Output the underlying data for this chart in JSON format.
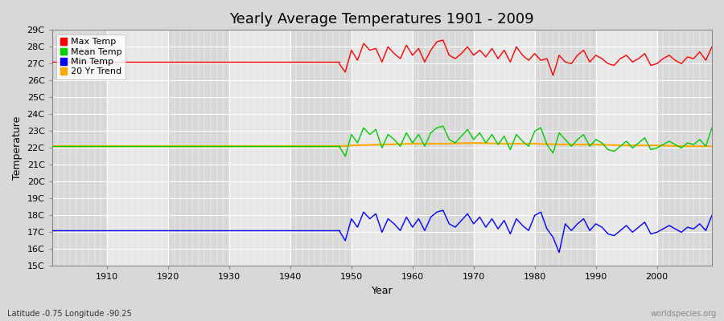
{
  "title": "Yearly Average Temperatures 1901 - 2009",
  "xlabel": "Year",
  "ylabel": "Temperature",
  "bottom_left_label": "Latitude -0.75 Longitude -90.25",
  "bottom_right_label": "worldspecies.org",
  "legend_entries": [
    "Max Temp",
    "Mean Temp",
    "Min Temp",
    "20 Yr Trend"
  ],
  "legend_colors": [
    "#ff0000",
    "#00cc00",
    "#0000ff",
    "#ffaa00"
  ],
  "ylim": [
    15,
    29
  ],
  "yticks": [
    15,
    16,
    17,
    18,
    19,
    20,
    21,
    22,
    23,
    24,
    25,
    26,
    27,
    28,
    29
  ],
  "ytick_labels": [
    "15C",
    "16C",
    "17C",
    "18C",
    "19C",
    "20C",
    "21C",
    "22C",
    "23C",
    "24C",
    "25C",
    "26C",
    "27C",
    "28C",
    "29C"
  ],
  "xlim": [
    1901,
    2009
  ],
  "xticks": [
    1910,
    1920,
    1930,
    1940,
    1950,
    1960,
    1970,
    1980,
    1990,
    2000
  ],
  "bg_color": "#d8d8d8",
  "plot_bg_color_light": "#e8e8e8",
  "plot_bg_color_dark": "#d8d8d8",
  "grid_color": "#ffffff",
  "max_flat_value": 27.1,
  "mean_flat_value": 22.1,
  "min_flat_value": 17.1,
  "trend_flat_value": 22.1,
  "flat_start": 1901,
  "flat_end": 1948,
  "max_data": {
    "years": [
      1948,
      1949,
      1950,
      1951,
      1952,
      1953,
      1954,
      1955,
      1956,
      1957,
      1958,
      1959,
      1960,
      1961,
      1962,
      1963,
      1964,
      1965,
      1966,
      1967,
      1968,
      1969,
      1970,
      1971,
      1972,
      1973,
      1974,
      1975,
      1976,
      1977,
      1978,
      1979,
      1980,
      1981,
      1982,
      1983,
      1984,
      1985,
      1986,
      1987,
      1988,
      1989,
      1990,
      1991,
      1992,
      1993,
      1994,
      1995,
      1996,
      1997,
      1998,
      1999,
      2000,
      2001,
      2002,
      2003,
      2004,
      2005,
      2006,
      2007,
      2008,
      2009
    ],
    "values": [
      27.0,
      26.5,
      27.8,
      27.2,
      28.2,
      27.8,
      27.9,
      27.1,
      28.0,
      27.6,
      27.3,
      28.1,
      27.5,
      27.9,
      27.1,
      27.8,
      28.3,
      28.4,
      27.5,
      27.3,
      27.6,
      28.0,
      27.5,
      27.8,
      27.4,
      27.9,
      27.3,
      27.8,
      27.1,
      28.0,
      27.5,
      27.2,
      27.6,
      27.2,
      27.3,
      26.3,
      27.5,
      27.1,
      27.0,
      27.5,
      27.8,
      27.1,
      27.5,
      27.3,
      27.0,
      26.9,
      27.3,
      27.5,
      27.1,
      27.3,
      27.6,
      26.9,
      27.0,
      27.3,
      27.5,
      27.2,
      27.0,
      27.4,
      27.3,
      27.7,
      27.2,
      28.0
    ]
  },
  "mean_data": {
    "years": [
      1948,
      1949,
      1950,
      1951,
      1952,
      1953,
      1954,
      1955,
      1956,
      1957,
      1958,
      1959,
      1960,
      1961,
      1962,
      1963,
      1964,
      1965,
      1966,
      1967,
      1968,
      1969,
      1970,
      1971,
      1972,
      1973,
      1974,
      1975,
      1976,
      1977,
      1978,
      1979,
      1980,
      1981,
      1982,
      1983,
      1984,
      1985,
      1986,
      1987,
      1988,
      1989,
      1990,
      1991,
      1992,
      1993,
      1994,
      1995,
      1996,
      1997,
      1998,
      1999,
      2000,
      2001,
      2002,
      2003,
      2004,
      2005,
      2006,
      2007,
      2008,
      2009
    ],
    "values": [
      22.1,
      21.5,
      22.8,
      22.3,
      23.2,
      22.8,
      23.1,
      22.0,
      22.8,
      22.5,
      22.1,
      22.9,
      22.3,
      22.8,
      22.1,
      22.9,
      23.2,
      23.3,
      22.5,
      22.3,
      22.7,
      23.1,
      22.5,
      22.9,
      22.3,
      22.8,
      22.2,
      22.7,
      21.9,
      22.8,
      22.4,
      22.1,
      23.0,
      23.2,
      22.2,
      21.7,
      22.9,
      22.5,
      22.1,
      22.5,
      22.8,
      22.1,
      22.5,
      22.3,
      21.9,
      21.8,
      22.1,
      22.4,
      22.0,
      22.3,
      22.6,
      21.9,
      22.0,
      22.2,
      22.4,
      22.2,
      22.0,
      22.3,
      22.2,
      22.5,
      22.1,
      23.2
    ]
  },
  "min_data": {
    "years": [
      1948,
      1949,
      1950,
      1951,
      1952,
      1953,
      1954,
      1955,
      1956,
      1957,
      1958,
      1959,
      1960,
      1961,
      1962,
      1963,
      1964,
      1965,
      1966,
      1967,
      1968,
      1969,
      1970,
      1971,
      1972,
      1973,
      1974,
      1975,
      1976,
      1977,
      1978,
      1979,
      1980,
      1981,
      1982,
      1983,
      1984,
      1985,
      1986,
      1987,
      1988,
      1989,
      1990,
      1991,
      1992,
      1993,
      1994,
      1995,
      1996,
      1997,
      1998,
      1999,
      2000,
      2001,
      2002,
      2003,
      2004,
      2005,
      2006,
      2007,
      2008,
      2009
    ],
    "values": [
      17.1,
      16.5,
      17.8,
      17.3,
      18.2,
      17.8,
      18.1,
      17.0,
      17.8,
      17.5,
      17.1,
      17.9,
      17.3,
      17.8,
      17.1,
      17.9,
      18.2,
      18.3,
      17.5,
      17.3,
      17.7,
      18.1,
      17.5,
      17.9,
      17.3,
      17.8,
      17.2,
      17.7,
      16.9,
      17.8,
      17.4,
      17.1,
      18.0,
      18.2,
      17.2,
      16.7,
      15.8,
      17.5,
      17.1,
      17.5,
      17.8,
      17.1,
      17.5,
      17.3,
      16.9,
      16.8,
      17.1,
      17.4,
      17.0,
      17.3,
      17.6,
      16.9,
      17.0,
      17.2,
      17.4,
      17.2,
      17.0,
      17.3,
      17.2,
      17.5,
      17.1,
      18.0
    ]
  },
  "trend_data": {
    "years": [
      1901,
      1948,
      1950,
      1955,
      1960,
      1965,
      1970,
      1975,
      1980,
      1985,
      1990,
      1995,
      2000,
      2005,
      2009
    ],
    "values": [
      22.1,
      22.1,
      22.15,
      22.2,
      22.25,
      22.25,
      22.3,
      22.25,
      22.25,
      22.2,
      22.2,
      22.15,
      22.15,
      22.1,
      22.1
    ]
  },
  "line_width": 1.0,
  "title_fontsize": 13,
  "axis_fontsize": 9,
  "tick_fontsize": 8,
  "label_fontsize": 8
}
